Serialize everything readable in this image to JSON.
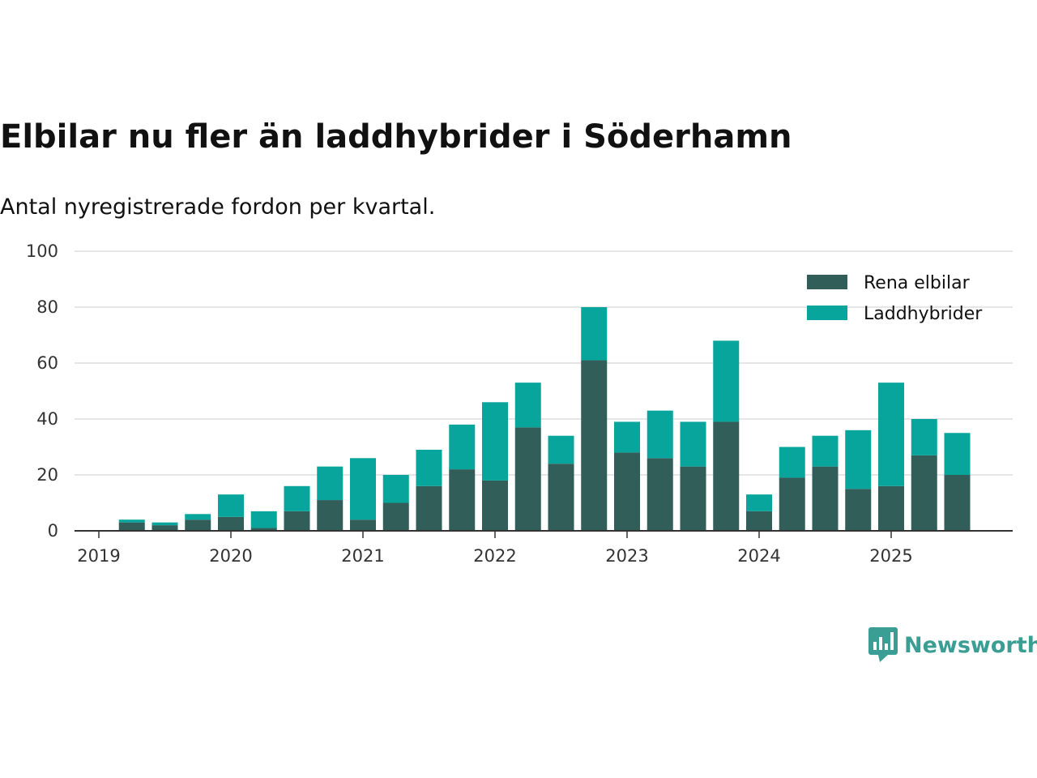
{
  "header": {
    "title": "Elbilar nu fler än laddhybrider i Söderhamn",
    "subtitle": "Antal nyregistrerade fordon per kvartal."
  },
  "brand": {
    "name": "Newsworthy",
    "color": "#3a9e94"
  },
  "chart_data": {
    "type": "bar",
    "stacked": true,
    "title": "Elbilar nu fler än laddhybrider i Söderhamn",
    "subtitle": "Antal nyregistrerade fordon per kvartal.",
    "xlabel": "",
    "ylabel": "",
    "ylim": [
      0,
      100
    ],
    "yticks": [
      0,
      20,
      40,
      60,
      80,
      100
    ],
    "xticks": [
      "2019",
      "2020",
      "2021",
      "2022",
      "2023",
      "2024",
      "2025"
    ],
    "grid": true,
    "legend_position": "top-right",
    "categories": [
      "2019 Q2",
      "2019 Q3",
      "2019 Q4",
      "2020 Q1",
      "2020 Q2",
      "2020 Q3",
      "2020 Q4",
      "2021 Q1",
      "2021 Q2",
      "2021 Q3",
      "2021 Q4",
      "2022 Q1",
      "2022 Q2",
      "2022 Q3",
      "2022 Q4",
      "2023 Q1",
      "2023 Q2",
      "2023 Q3",
      "2023 Q4",
      "2024 Q1",
      "2024 Q2",
      "2024 Q3",
      "2024 Q4",
      "2025 Q1",
      "2025 Q2",
      "2025 Q3"
    ],
    "series": [
      {
        "name": "Rena elbilar",
        "color": "#325e59",
        "values": [
          3,
          2,
          4,
          5,
          1,
          7,
          11,
          4,
          10,
          16,
          22,
          18,
          37,
          24,
          61,
          28,
          26,
          23,
          39,
          7,
          19,
          23,
          15,
          16,
          27,
          20
        ]
      },
      {
        "name": "Laddhybrider",
        "color": "#07a59c",
        "values": [
          1,
          1,
          2,
          8,
          6,
          9,
          12,
          22,
          10,
          13,
          16,
          28,
          16,
          10,
          19,
          11,
          17,
          16,
          29,
          6,
          11,
          11,
          21,
          37,
          13,
          15
        ]
      }
    ]
  }
}
